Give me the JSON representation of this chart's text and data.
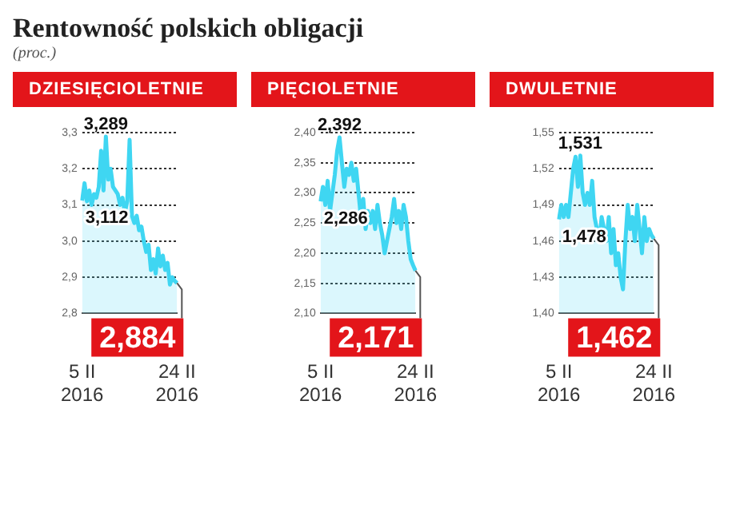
{
  "chart_data": [
    {
      "type": "other",
      "title": "Rentowność polskich obligacji",
      "subtitle": "(proc.)"
    },
    {
      "type": "area",
      "title": "DZIESIĘCIOLETNIE",
      "categories": [
        "5 II 2016",
        null,
        null,
        null,
        null,
        null,
        null,
        null,
        null,
        null,
        null,
        null,
        null,
        null,
        null,
        null,
        null,
        null,
        null,
        null,
        null,
        null,
        null,
        null,
        null,
        null,
        null,
        null,
        null,
        null,
        null,
        null,
        null,
        null,
        null,
        null,
        null,
        null,
        null,
        null,
        "24 II 2016"
      ],
      "series": [
        {
          "color": "#3fd6f2",
          "values": [
            3.112,
            3.16,
            3.11,
            3.14,
            3.1,
            3.13,
            3.12,
            3.15,
            3.25,
            3.14,
            3.289,
            3.17,
            3.2,
            3.15,
            3.14,
            3.13,
            3.1,
            3.12,
            3.08,
            3.11,
            3.28,
            3.07,
            3.05,
            3.07,
            3.03,
            3.04,
            3.0,
            2.97,
            2.99,
            2.92,
            2.95,
            2.91,
            2.98,
            2.93,
            2.96,
            2.92,
            2.94,
            2.88,
            2.9,
            2.89,
            2.884
          ]
        }
      ],
      "ylim": [
        2.8,
        3.3
      ],
      "yticks": [
        {
          "value": 2.8,
          "label": "2,8"
        },
        {
          "value": 2.9,
          "label": "2,9"
        },
        {
          "value": 3.0,
          "label": "3,0"
        },
        {
          "value": 3.1,
          "label": "3,1"
        },
        {
          "value": 3.2,
          "label": "3,2"
        },
        {
          "value": 3.3,
          "label": "3,3"
        }
      ],
      "grid": "y",
      "annotations": [
        {
          "text": "3,289",
          "y": 3.289
        },
        {
          "text": "3,112",
          "x": "5 II 2016",
          "y": 3.112
        },
        {
          "text": "2,884",
          "x": "24 II 2016",
          "y": 2.884
        }
      ]
    },
    {
      "type": "area",
      "title": "PIĘCIOLETNIE",
      "categories": [
        "5 II 2016",
        null,
        null,
        null,
        null,
        null,
        null,
        null,
        null,
        null,
        null,
        null,
        null,
        null,
        null,
        null,
        null,
        null,
        null,
        null,
        null,
        null,
        null,
        null,
        null,
        null,
        null,
        null,
        null,
        null,
        null,
        null,
        null,
        null,
        null,
        null,
        null,
        null,
        null,
        null,
        "24 II 2016"
      ],
      "series": [
        {
          "color": "#3fd6f2",
          "values": [
            2.286,
            2.31,
            2.28,
            2.32,
            2.27,
            2.3,
            2.33,
            2.37,
            2.392,
            2.35,
            2.31,
            2.34,
            2.33,
            2.35,
            2.32,
            2.34,
            2.3,
            2.26,
            2.29,
            2.24,
            2.27,
            2.25,
            2.27,
            2.24,
            2.28,
            2.25,
            2.23,
            2.2,
            2.22,
            2.24,
            2.26,
            2.29,
            2.25,
            2.27,
            2.24,
            2.28,
            2.26,
            2.22,
            2.19,
            2.18,
            2.171
          ]
        }
      ],
      "ylim": [
        2.1,
        2.4
      ],
      "yticks": [
        {
          "value": 2.1,
          "label": "2,10"
        },
        {
          "value": 2.15,
          "label": "2,15"
        },
        {
          "value": 2.2,
          "label": "2,20"
        },
        {
          "value": 2.25,
          "label": "2,25"
        },
        {
          "value": 2.3,
          "label": "2,30"
        },
        {
          "value": 2.35,
          "label": "2,35"
        },
        {
          "value": 2.4,
          "label": "2,40"
        }
      ],
      "grid": "y",
      "annotations": [
        {
          "text": "2,392",
          "y": 2.392
        },
        {
          "text": "2,286",
          "x": "5 II 2016",
          "y": 2.286
        },
        {
          "text": "2,171",
          "x": "24 II 2016",
          "y": 2.171
        }
      ]
    },
    {
      "type": "area",
      "title": "DWULETNIE",
      "categories": [
        "5 II 2016",
        null,
        null,
        null,
        null,
        null,
        null,
        null,
        null,
        null,
        null,
        null,
        null,
        null,
        null,
        null,
        null,
        null,
        null,
        null,
        null,
        null,
        null,
        null,
        null,
        null,
        null,
        null,
        null,
        null,
        null,
        null,
        null,
        null,
        null,
        null,
        null,
        null,
        null,
        null,
        "24 II 2016"
      ],
      "series": [
        {
          "color": "#3fd6f2",
          "values": [
            1.478,
            1.49,
            1.48,
            1.49,
            1.48,
            1.5,
            1.52,
            1.53,
            1.505,
            1.531,
            1.5,
            1.49,
            1.5,
            1.49,
            1.51,
            1.48,
            1.47,
            1.46,
            1.48,
            1.47,
            1.46,
            1.48,
            1.45,
            1.47,
            1.44,
            1.45,
            1.43,
            1.42,
            1.46,
            1.49,
            1.47,
            1.48,
            1.46,
            1.49,
            1.47,
            1.45,
            1.48,
            1.46,
            1.47,
            1.465,
            1.462
          ]
        }
      ],
      "ylim": [
        1.4,
        1.55
      ],
      "yticks": [
        {
          "value": 1.4,
          "label": "1,40"
        },
        {
          "value": 1.43,
          "label": "1,43"
        },
        {
          "value": 1.46,
          "label": "1,46"
        },
        {
          "value": 1.49,
          "label": "1,49"
        },
        {
          "value": 1.52,
          "label": "1,52"
        },
        {
          "value": 1.55,
          "label": "1,55"
        }
      ],
      "grid": "y",
      "annotations": [
        {
          "text": "1,531",
          "y": 1.531
        },
        {
          "text": "1,478",
          "x": "5 II 2016",
          "y": 1.478
        },
        {
          "text": "1,462",
          "x": "24 II 2016",
          "y": 1.462
        }
      ]
    }
  ]
}
